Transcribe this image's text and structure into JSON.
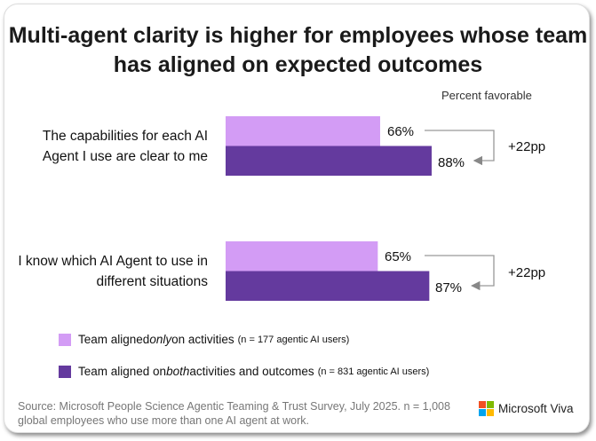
{
  "chart_data": {
    "type": "bar",
    "orientation": "horizontal",
    "title": "Multi-agent clarity is higher for employees whose team has aligned on expected outcomes",
    "unit_label": "Percent favorable",
    "categories": [
      "The capabilities for each AI Agent I use are clear to me",
      "I know which AI Agent to use in different situations"
    ],
    "series": [
      {
        "name": "Team aligned only on activities",
        "name_prefix": "Team aligned ",
        "name_em": "only",
        "name_suffix": " on activities",
        "n_note": "(n = 177 agentic AI users)",
        "color": "#d39cf5",
        "values": [
          66,
          65
        ],
        "labels": [
          "66%",
          "65%"
        ]
      },
      {
        "name": "Team aligned on both activities and outcomes",
        "name_prefix": "Team aligned on ",
        "name_em": "both",
        "name_suffix": " activities and outcomes",
        "n_note": "(n = 831 agentic AI users)",
        "color": "#643a9e",
        "values": [
          88,
          87
        ],
        "labels": [
          "88%",
          "87%"
        ]
      }
    ],
    "differences": [
      "+22pp",
      "+22pp"
    ],
    "xlim": [
      0,
      100
    ],
    "grid": false,
    "legend_placement": "bottom-left"
  },
  "source": "Source: Microsoft People Science Agentic Teaming & Trust Survey, July 2025. n = 1,008 global employees who use more than one AI agent at work.",
  "brand": "Microsoft Viva"
}
